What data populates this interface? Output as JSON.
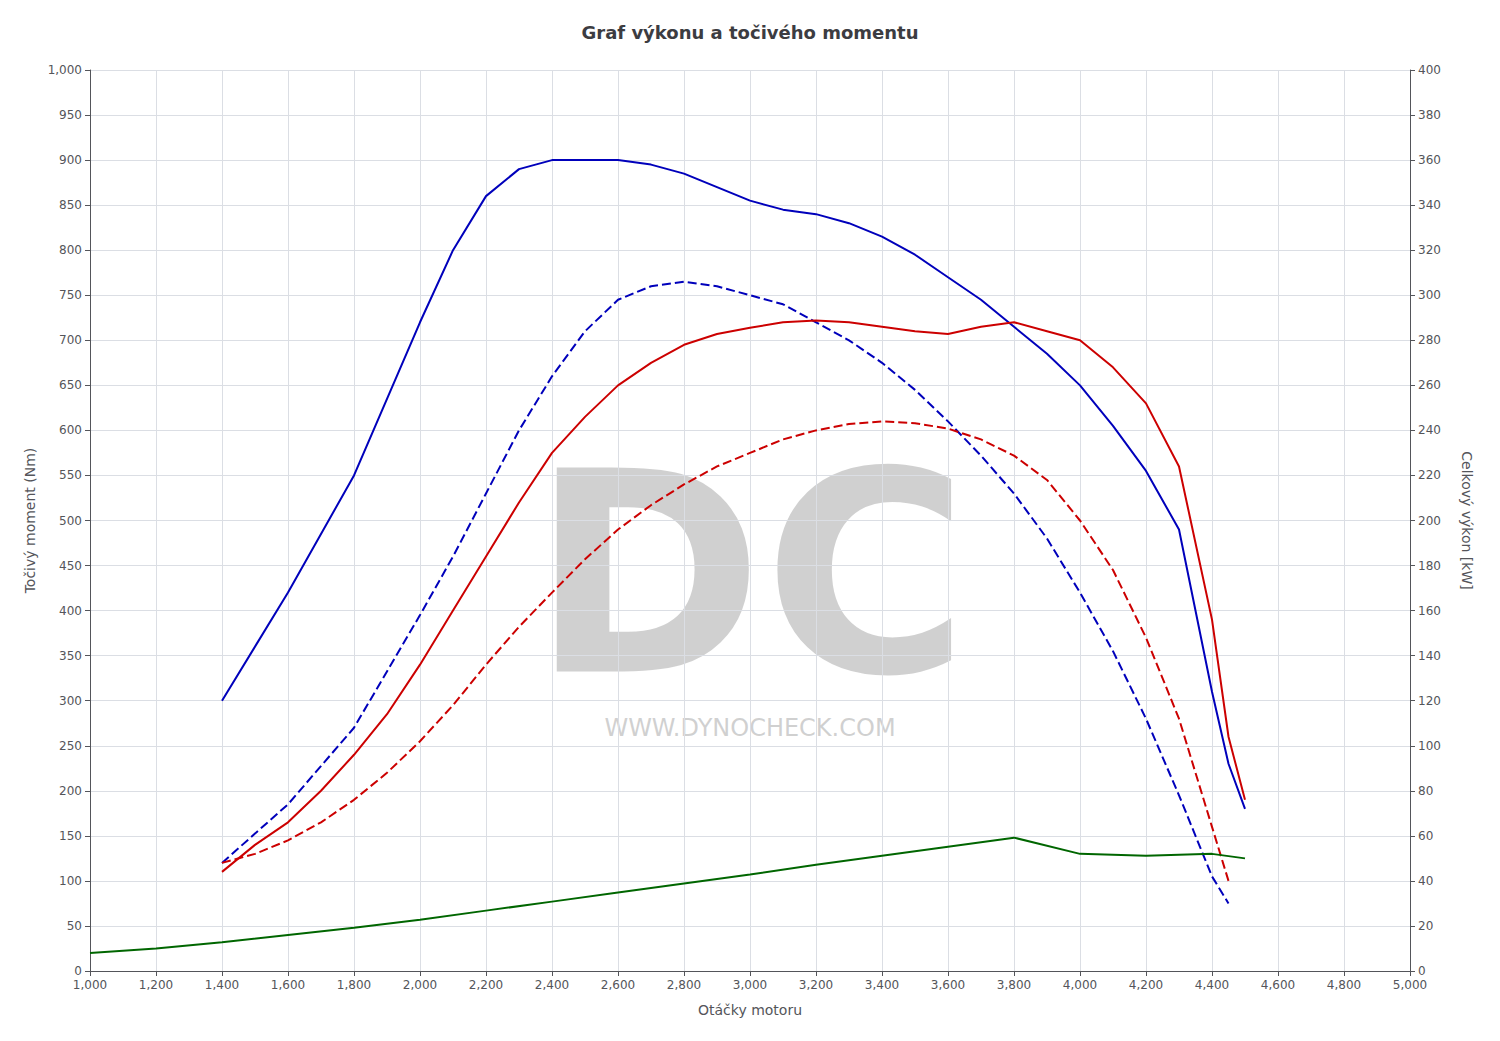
{
  "chart_data": {
    "type": "line",
    "title": "Graf výkonu a točivého momentu",
    "x_label": "Otáčky motoru",
    "y_label": "Točivý moment (Nm)",
    "y2_label": "Celkový výkon [kW]",
    "annotations": [
      "DC",
      "WWW.DYNOCHECK.COM"
    ],
    "xlim": [
      1000,
      5000
    ],
    "ylim": [
      0,
      1000
    ],
    "y2lim": [
      0,
      400
    ],
    "xticks": [
      1000,
      1200,
      1400,
      1600,
      1800,
      2000,
      2200,
      2400,
      2600,
      2800,
      3000,
      3200,
      3400,
      3600,
      3800,
      4000,
      4200,
      4400,
      4600,
      4800,
      5000
    ],
    "yticks": [
      0,
      50,
      100,
      150,
      200,
      250,
      300,
      350,
      400,
      450,
      500,
      550,
      600,
      650,
      700,
      750,
      800,
      850,
      900,
      950,
      1000
    ],
    "y2ticks": [
      0,
      20,
      40,
      60,
      80,
      100,
      120,
      140,
      160,
      180,
      200,
      220,
      240,
      260,
      280,
      300,
      320,
      340,
      360,
      380,
      400
    ],
    "grid": true,
    "series": [
      {
        "color": "#0000bb",
        "line_style": "solid",
        "x": [
          1400,
          1600,
          1800,
          2000,
          2100,
          2200,
          2300,
          2400,
          2500,
          2600,
          2700,
          2800,
          2900,
          3000,
          3100,
          3200,
          3300,
          3400,
          3500,
          3600,
          3700,
          3800,
          3900,
          4000,
          4100,
          4200,
          4300,
          4400,
          4450,
          4500
        ],
        "values": [
          300,
          420,
          550,
          720,
          800,
          860,
          890,
          900,
          900,
          900,
          895,
          885,
          870,
          855,
          845,
          840,
          830,
          815,
          795,
          770,
          745,
          715,
          685,
          650,
          605,
          555,
          490,
          310,
          230,
          180
        ]
      },
      {
        "color": "#0000bb",
        "line_style": "dashed",
        "x": [
          1400,
          1600,
          1800,
          2000,
          2100,
          2200,
          2300,
          2400,
          2500,
          2600,
          2700,
          2800,
          2900,
          3000,
          3100,
          3200,
          3300,
          3400,
          3500,
          3600,
          3700,
          3800,
          3900,
          4000,
          4100,
          4200,
          4300,
          4400,
          4450
        ],
        "values": [
          120,
          185,
          270,
          395,
          460,
          530,
          600,
          660,
          710,
          745,
          760,
          765,
          760,
          750,
          740,
          720,
          700,
          675,
          645,
          610,
          572,
          530,
          480,
          420,
          355,
          280,
          195,
          105,
          75
        ]
      },
      {
        "color": "#cc0000",
        "line_style": "solid",
        "x": [
          1400,
          1500,
          1600,
          1700,
          1800,
          1900,
          2000,
          2100,
          2200,
          2300,
          2400,
          2500,
          2600,
          2700,
          2800,
          2900,
          3000,
          3100,
          3200,
          3300,
          3400,
          3500,
          3600,
          3700,
          3800,
          3900,
          4000,
          4100,
          4200,
          4300,
          4400,
          4450,
          4500
        ],
        "values": [
          110,
          140,
          165,
          200,
          240,
          285,
          340,
          400,
          460,
          520,
          575,
          615,
          650,
          675,
          695,
          707,
          714,
          720,
          722,
          720,
          715,
          710,
          707,
          715,
          720,
          710,
          700,
          670,
          630,
          560,
          390,
          260,
          190
        ]
      },
      {
        "color": "#cc0000",
        "line_style": "dashed",
        "x": [
          1400,
          1500,
          1600,
          1700,
          1800,
          1900,
          2000,
          2100,
          2200,
          2300,
          2400,
          2500,
          2600,
          2700,
          2800,
          2900,
          3000,
          3100,
          3200,
          3300,
          3400,
          3500,
          3600,
          3700,
          3800,
          3900,
          4000,
          4100,
          4200,
          4300,
          4400,
          4450
        ],
        "values": [
          120,
          130,
          145,
          165,
          190,
          220,
          255,
          295,
          340,
          382,
          420,
          457,
          490,
          517,
          540,
          560,
          575,
          590,
          600,
          607,
          610,
          608,
          602,
          590,
          572,
          545,
          500,
          445,
          370,
          280,
          160,
          100
        ]
      },
      {
        "color": "#006600",
        "line_style": "solid",
        "x": [
          1000,
          1200,
          1400,
          1600,
          1800,
          2000,
          2200,
          2400,
          2600,
          2800,
          3000,
          3200,
          3400,
          3600,
          3800,
          4000,
          4200,
          4400,
          4500
        ],
        "values": [
          20,
          25,
          32,
          40,
          48,
          57,
          67,
          77,
          87,
          97,
          107,
          118,
          128,
          138,
          148,
          130,
          128,
          130,
          125
        ]
      }
    ]
  }
}
